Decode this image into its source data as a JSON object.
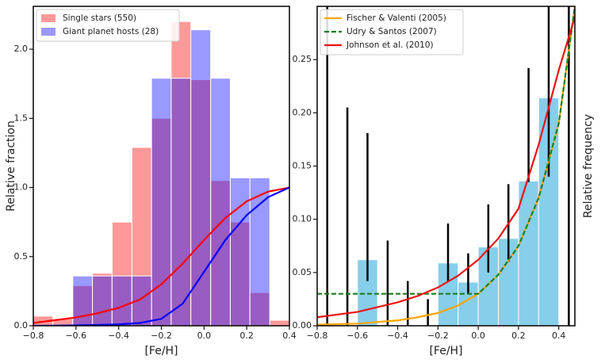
{
  "chart_data": [
    {
      "type": "histogram",
      "xlabel": "[Fe/H]",
      "ylabel": "Relative fraction",
      "bins": [
        -0.8,
        -0.708,
        -0.615,
        -0.523,
        -0.431,
        -0.338,
        -0.246,
        -0.154,
        -0.062,
        0.031,
        0.123,
        0.215,
        0.308,
        0.4
      ],
      "series": [
        {
          "name": "Single stars  (550)",
          "color": "#ff0000",
          "values": [
            0.07,
            0.05,
            0.29,
            0.38,
            0.75,
            1.29,
            1.5,
            2.2,
            1.78,
            1.05,
            0.75,
            0.24,
            0.04
          ]
        },
        {
          "name": "Giant planet hosts (28)",
          "color": "#0000ff",
          "values": [
            0,
            0,
            0.36,
            0.36,
            0.36,
            0.36,
            1.79,
            1.79,
            2.14,
            1.79,
            1.07,
            1.07,
            0
          ]
        }
      ],
      "curve_x": [
        -0.8,
        -0.7,
        -0.6,
        -0.5,
        -0.4,
        -0.3,
        -0.2,
        -0.1,
        0,
        0.1,
        0.2,
        0.3,
        0.4
      ],
      "curves": [
        {
          "color": "#ff0000",
          "values": [
            0.02,
            0.04,
            0.06,
            0.09,
            0.13,
            0.19,
            0.3,
            0.45,
            0.62,
            0.78,
            0.9,
            0.97,
            1.0
          ]
        },
        {
          "color": "#0000ff",
          "values": [
            0,
            0.001,
            0.003,
            0.006,
            0.01,
            0.02,
            0.05,
            0.16,
            0.39,
            0.62,
            0.8,
            0.93,
            1.0
          ]
        }
      ],
      "xlim": [
        -0.8,
        0.4
      ],
      "ylim": [
        0,
        2.31
      ],
      "xticks": [
        {
          "value": -0.8,
          "label": "−0.8"
        },
        {
          "value": -0.6,
          "label": "−0.6"
        },
        {
          "value": -0.4,
          "label": "−0.4"
        },
        {
          "value": -0.2,
          "label": "−0.2"
        },
        {
          "value": 0,
          "label": "0.0"
        },
        0.2,
        0.4
      ],
      "yticks": [
        {
          "value": 0,
          "label": "0.0"
        },
        0.5,
        {
          "value": 1,
          "label": "1.0"
        },
        1.5,
        {
          "value": 2,
          "label": "2.0"
        }
      ],
      "legend": "upper left"
    },
    {
      "type": "histogram",
      "xlabel": "[Fe/H]",
      "ylabel": "Relative frequency",
      "bins": [
        -0.8,
        -0.7,
        -0.6,
        -0.5,
        -0.4,
        -0.3,
        -0.2,
        -0.1,
        0,
        0.1,
        0.2,
        0.3,
        0.4,
        0.5
      ],
      "values": [
        0,
        0,
        0.062,
        0,
        0,
        0,
        0.059,
        0.041,
        0.074,
        0.082,
        0.136,
        0.214,
        0
      ],
      "error_low": [
        0,
        0,
        0.042,
        0,
        0,
        0,
        0.042,
        0.03,
        0.05,
        0.06,
        0.135,
        0.14,
        0
      ],
      "error_high": [
        0.31,
        0.205,
        0.181,
        0.08,
        0.042,
        0.025,
        0.096,
        0.068,
        0.114,
        0.133,
        0.242,
        0.31,
        0.31
      ],
      "color": "#87ceeb",
      "curve_x": [
        -0.8,
        -0.6,
        -0.4,
        -0.3,
        -0.2,
        -0.1,
        0,
        0.1,
        0.2,
        0.3,
        0.4,
        0.48
      ],
      "curves": [
        {
          "name": "Fischer & Valenti (2005)",
          "color": "#ffa500",
          "values": [
            0.001,
            0.002,
            0.005,
            0.008,
            0.012,
            0.019,
            0.03,
            0.048,
            0.075,
            0.12,
            0.19,
            0.3
          ]
        },
        {
          "name": "Udry & Santos (2007)",
          "color": "#1a7f1a",
          "dashed": true,
          "values": [
            0.03,
            0.03,
            0.03,
            0.03,
            0.03,
            0.03,
            0.03,
            0.048,
            0.075,
            0.12,
            0.19,
            0.3
          ]
        },
        {
          "name": "Johnson et al. (2010)",
          "color": "#ee1111",
          "values": [
            0.008,
            0.013,
            0.022,
            0.028,
            0.036,
            0.047,
            0.062,
            0.082,
            0.11,
            0.17,
            0.24,
            0.29
          ]
        }
      ],
      "xlim": [
        -0.8,
        0.48
      ],
      "ylim": [
        0,
        0.3
      ],
      "xticks": [
        {
          "value": -0.8,
          "label": "−0.8"
        },
        {
          "value": -0.6,
          "label": "−0.6"
        },
        {
          "value": -0.4,
          "label": "−0.4"
        },
        {
          "value": -0.2,
          "label": "−0.2"
        },
        {
          "value": 0,
          "label": "0.0"
        },
        0.2,
        0.4
      ],
      "yticks": [
        {
          "value": 0,
          "label": "0.00"
        },
        0.05,
        {
          "value": 0.1,
          "label": "0.10"
        },
        0.15,
        {
          "value": 0.2,
          "label": "0.20"
        },
        0.25
      ],
      "legend": "upper left"
    }
  ]
}
